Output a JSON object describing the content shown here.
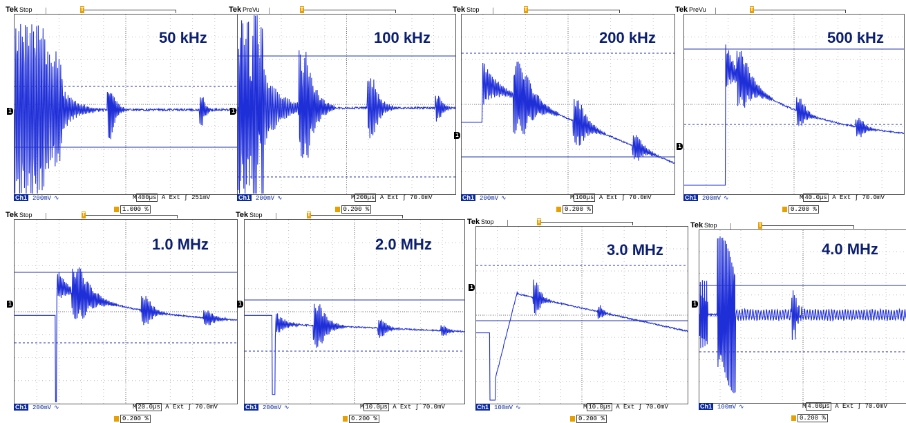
{
  "colors": {
    "trace": "#1f2fd8",
    "frequency_label": "#0b1f6e",
    "ch1_badge": "#0b2a9e",
    "trigger_marker": "#e8a000"
  },
  "brand": "Tek",
  "panels": [
    {
      "frequency": "50 kHz",
      "mode": "Stop",
      "channel": "Ch1",
      "volts_div": "200mV",
      "coupling_icon": "ac-coupling-icon",
      "timebase": "400µs",
      "trigger_source": "Ext",
      "trigger_level": "251mV",
      "trigger_position": "1.000 %"
    },
    {
      "frequency": "100 kHz",
      "mode": "PreVu",
      "channel": "Ch1",
      "volts_div": "200mV",
      "coupling_icon": "bw-limit-icon",
      "timebase": "200µs",
      "trigger_source": "Ext",
      "trigger_level": "70.0mV",
      "trigger_position": "0.200 %"
    },
    {
      "frequency": "200 kHz",
      "mode": "Stop",
      "channel": "Ch1",
      "volts_div": "200mV",
      "coupling_icon": "bw-limit-icon",
      "timebase": "100µs",
      "trigger_source": "Ext",
      "trigger_level": "70.0mV",
      "trigger_position": "0.200 %"
    },
    {
      "frequency": "500 kHz",
      "mode": "PreVu",
      "channel": "Ch1",
      "volts_div": "200mV",
      "coupling_icon": "bw-limit-icon",
      "timebase": "40.0µs",
      "trigger_source": "Ext",
      "trigger_level": "70.0mV",
      "trigger_position": "0.200 %"
    },
    {
      "frequency": "1.0 MHz",
      "mode": "Stop",
      "channel": "Ch1",
      "volts_div": "200mV",
      "coupling_icon": "bw-limit-icon",
      "timebase": "20.0µs",
      "trigger_source": "Ext",
      "trigger_level": "70.0mV",
      "trigger_position": "0.200 %"
    },
    {
      "frequency": "2.0 MHz",
      "mode": "Stop",
      "channel": "Ch1",
      "volts_div": "200mV",
      "coupling_icon": "bw-limit-icon",
      "timebase": "10.0µs",
      "trigger_source": "Ext",
      "trigger_level": "70.0mV",
      "trigger_position": "0.200 %"
    },
    {
      "frequency": "3.0 MHz",
      "mode": "Stop",
      "channel": "Ch1",
      "volts_div": "100mV",
      "coupling_icon": "bw-limit-icon",
      "timebase": "10.0µs",
      "trigger_source": "Ext",
      "trigger_level": "70.0mV",
      "trigger_position": "0.200 %"
    },
    {
      "frequency": "4.0 MHz",
      "mode": "Stop",
      "channel": "Ch1",
      "volts_div": "100mV",
      "coupling_icon": "bw-limit-icon",
      "timebase": "4.00µs",
      "trigger_source": "Ext",
      "trigger_level": "70.0mV",
      "trigger_position": "0.200 %"
    }
  ],
  "labels": {
    "channel_marker": "1",
    "timebase_prefix": "M",
    "trigger_mode": "A",
    "trigger_slope": "ʃ",
    "trigger_marker": "T"
  }
}
